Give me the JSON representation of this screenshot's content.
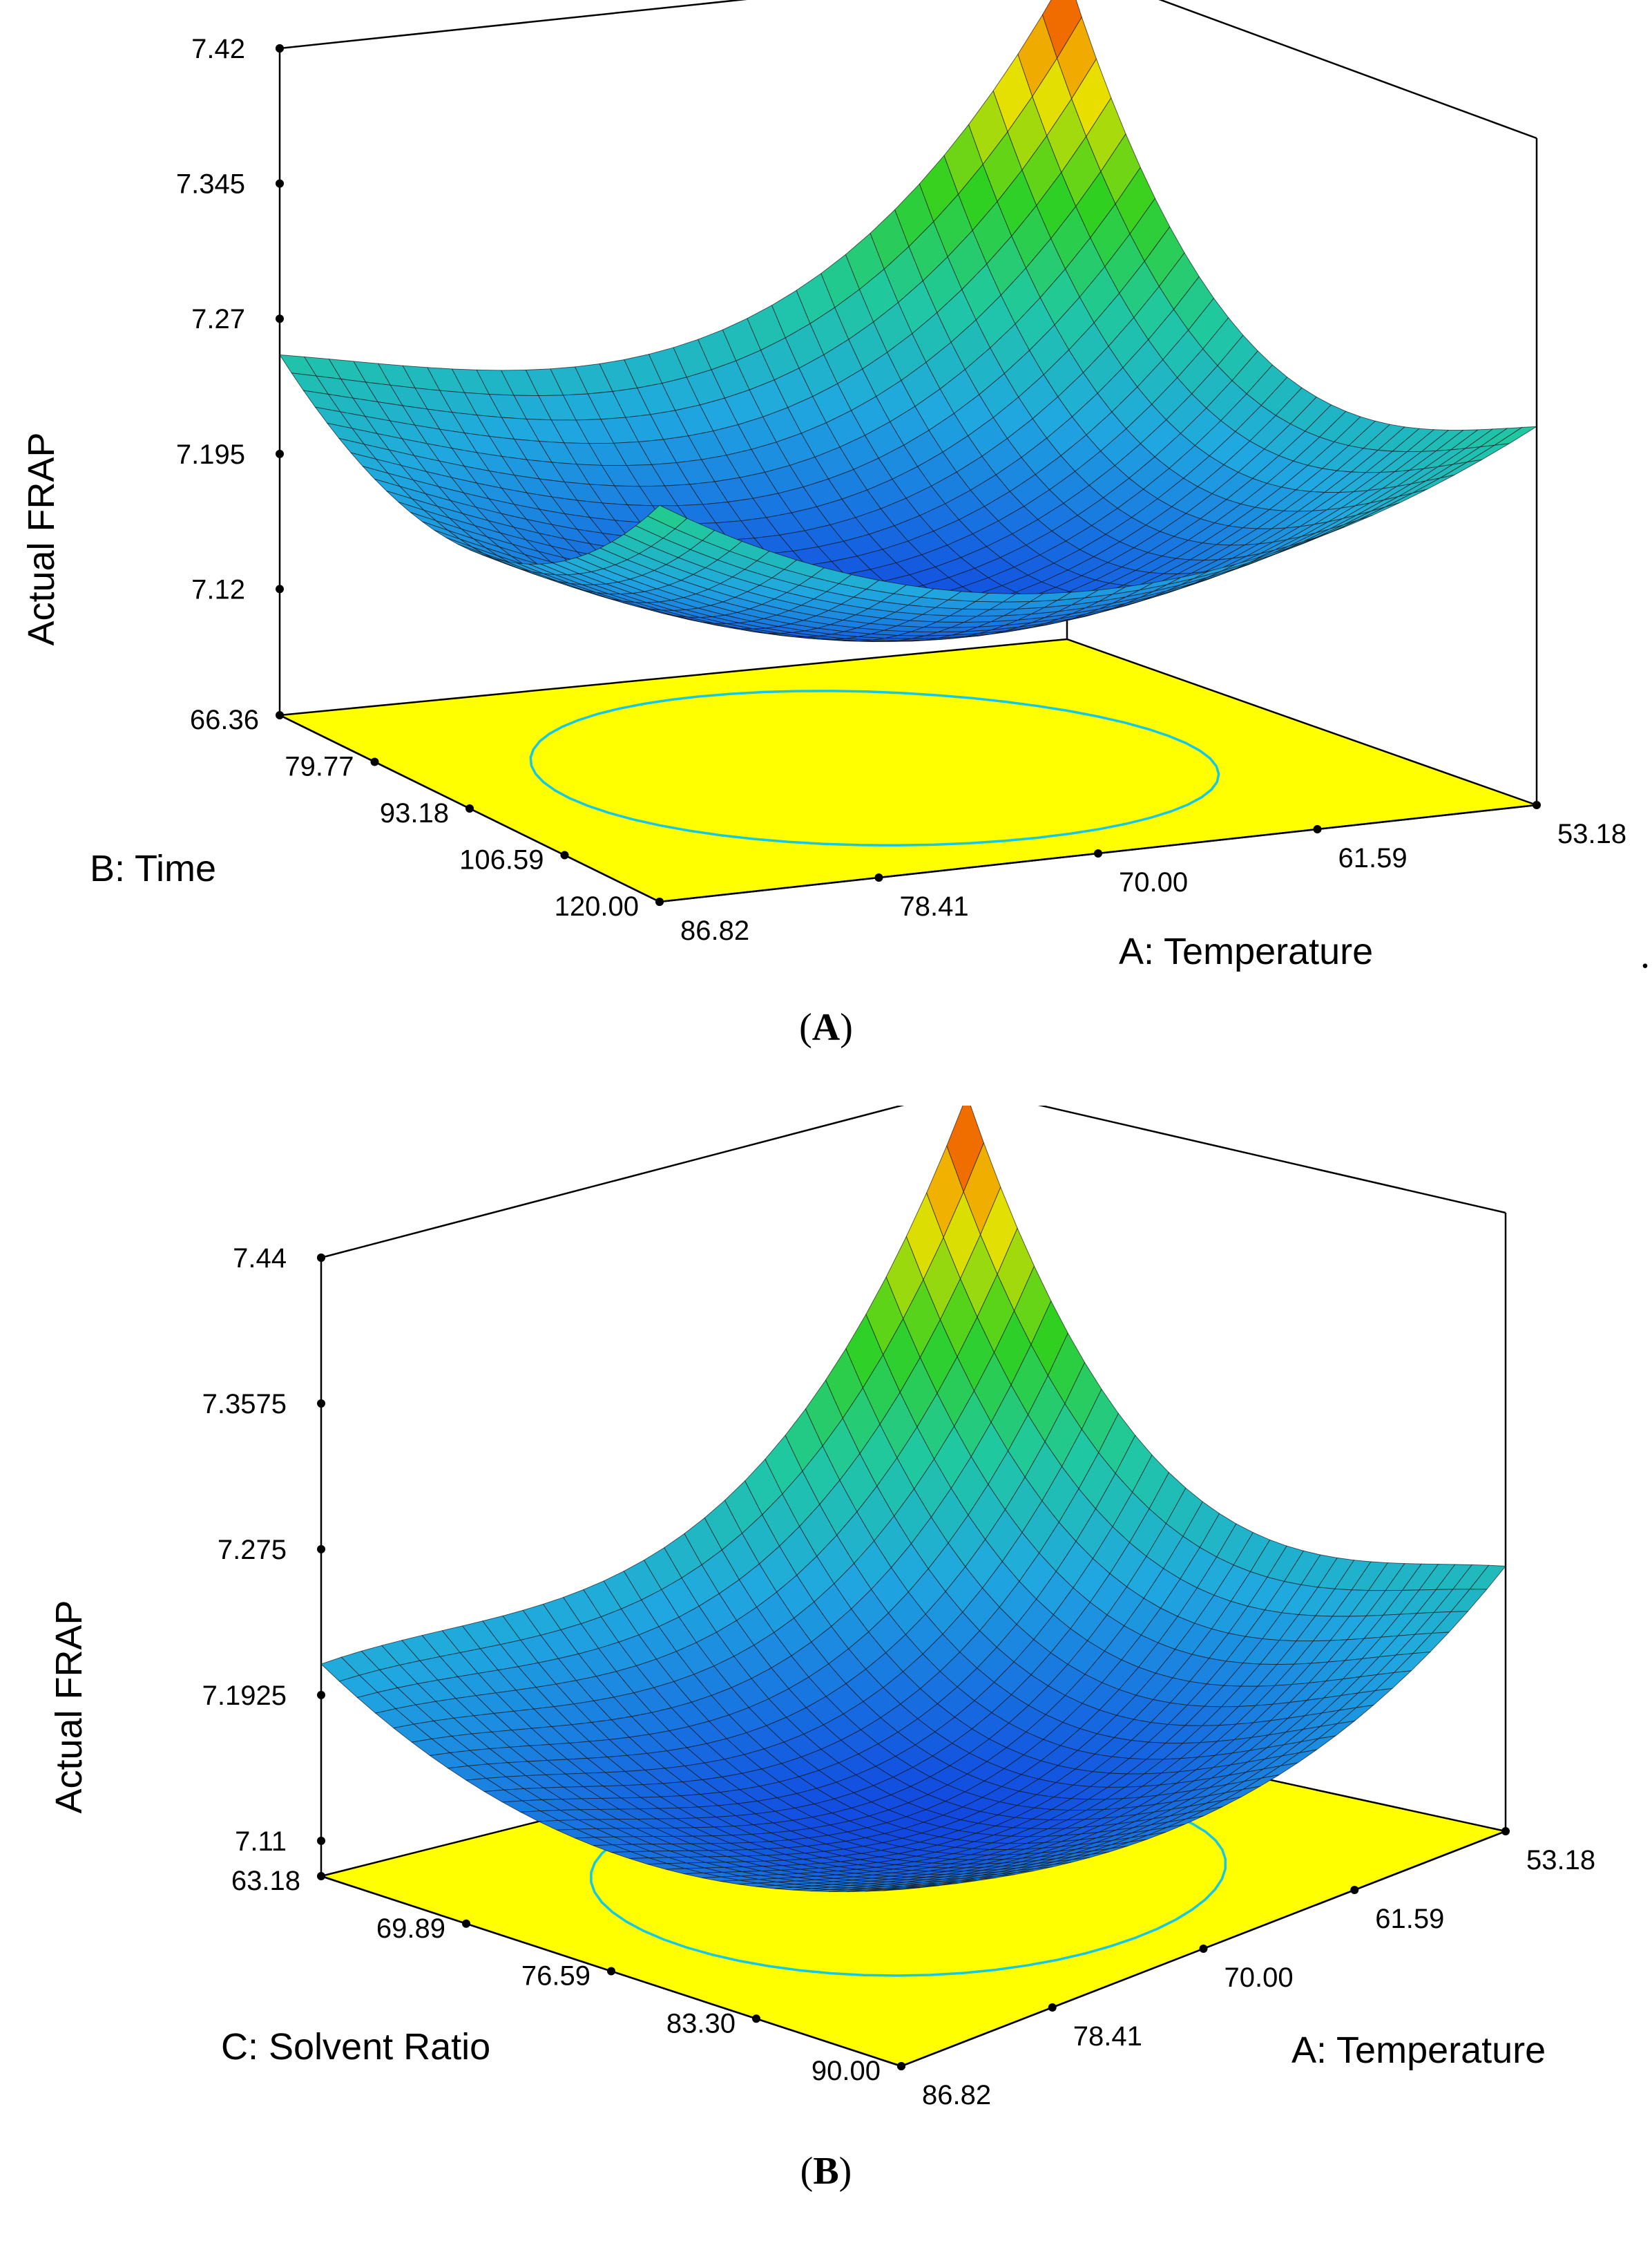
{
  "chart_data": [
    {
      "type": "surface",
      "panel_label": "A",
      "zlabel": "Actual FRAP",
      "z_ticks": [
        "7.12",
        "7.195",
        "7.27",
        "7.345",
        "7.42"
      ],
      "zlim": [
        7.05,
        7.42
      ],
      "x_axis": {
        "label": "A: Temperature",
        "ticks": [
          "86.82",
          "78.41",
          "70.00",
          "61.59",
          "53.18"
        ]
      },
      "y_axis": {
        "label": "B: Time",
        "ticks": [
          "66.36",
          "79.77",
          "93.18",
          "106.59",
          "120.00"
        ]
      },
      "surface": {
        "corner_values": {
          "x_low_y_low": 7.42,
          "x_low_y_high": 7.26,
          "x_high_y_low": 7.25,
          "x_high_y_high": 7.27
        },
        "minimum": 7.12
      },
      "trailing_mark": "."
    },
    {
      "type": "surface",
      "panel_label": "B",
      "zlabel": "Actual FRAP",
      "z_ticks": [
        "7.11",
        "7.1925",
        "7.275",
        "7.3575",
        "7.44"
      ],
      "zlim": [
        7.09,
        7.44
      ],
      "x_axis": {
        "label": "A: Temperature",
        "ticks": [
          "86.82",
          "78.41",
          "70.00",
          "61.59",
          "53.18"
        ]
      },
      "y_axis": {
        "label": "C: Solvent Ratio",
        "ticks": [
          "63.18",
          "69.89",
          "76.59",
          "83.30",
          "90.00"
        ]
      },
      "surface": {
        "corner_values": {
          "x_low_y_low": 7.44,
          "x_low_y_high": 7.24,
          "x_high_y_low": 7.21,
          "x_high_y_high": 7.19
        },
        "minimum": 7.11
      }
    }
  ],
  "colors": {
    "floor": "#ffff00",
    "contour": "#18c8e0",
    "low": "#1040e0",
    "mid": "#20c8a0",
    "green": "#30d020",
    "high": "#f03000"
  }
}
